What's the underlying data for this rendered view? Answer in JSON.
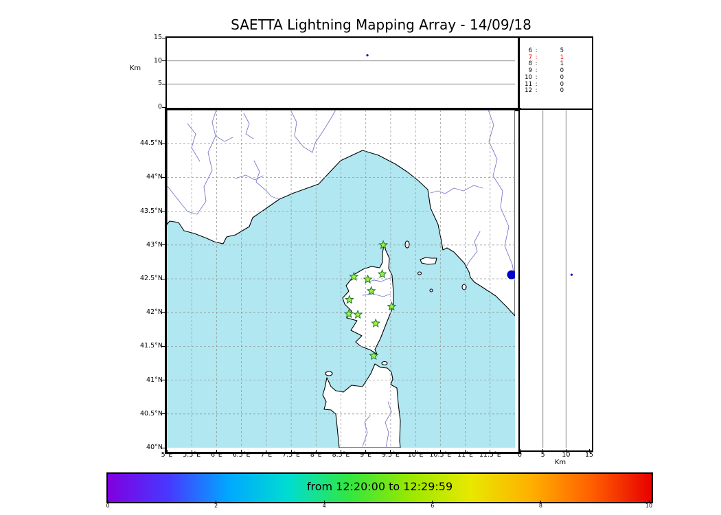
{
  "chart_data": {
    "type": "scatter",
    "title": "SAETTA Lightning Mapping Array - 14/09/18",
    "altitude_time_panel": {
      "ylabel": "Km",
      "ylim_km": [
        0,
        15
      ],
      "yticks_km": [
        0,
        5,
        10,
        15
      ],
      "gridlines_km": [
        5,
        10
      ],
      "sources": [
        {
          "time_frac": 0.576,
          "alt_km": 11.2
        }
      ]
    },
    "stations_histogram": {
      "rows": [
        {
          "label": "6",
          "value": "5",
          "highlight": false
        },
        {
          "label": "7",
          "value": "1",
          "highlight": true
        },
        {
          "label": "8",
          "value": "1",
          "highlight": false
        },
        {
          "label": "9",
          "value": "0",
          "highlight": false
        },
        {
          "label": "10",
          "value": "0",
          "highlight": false
        },
        {
          "label": "11",
          "value": "0",
          "highlight": false
        },
        {
          "label": "12",
          "value": "0",
          "highlight": false
        }
      ]
    },
    "map_panel": {
      "lon_range": [
        5,
        12
      ],
      "lat_range": [
        40,
        45
      ],
      "lat_ticks": [
        {
          "v": 44.5,
          "label": "44.5°N"
        },
        {
          "v": 44,
          "label": "44°N"
        },
        {
          "v": 43.5,
          "label": "43.5°N"
        },
        {
          "v": 43,
          "label": "43°N"
        },
        {
          "v": 42.5,
          "label": "42.5°N"
        },
        {
          "v": 42,
          "label": "42°N"
        },
        {
          "v": 41.5,
          "label": "41.5°N"
        },
        {
          "v": 41,
          "label": "41°N"
        },
        {
          "v": 40.5,
          "label": "40.5°N"
        },
        {
          "v": 40,
          "label": "40°N"
        }
      ],
      "lon_ticks": [
        {
          "v": 5,
          "label": "5°E"
        },
        {
          "v": 5.5,
          "label": "5.5°E"
        },
        {
          "v": 6,
          "label": "6°E"
        },
        {
          "v": 6.5,
          "label": "6.5°E"
        },
        {
          "v": 7,
          "label": "7°E"
        },
        {
          "v": 7.5,
          "label": "7.5°E"
        },
        {
          "v": 8,
          "label": "8°E"
        },
        {
          "v": 8.5,
          "label": "8.5°E"
        },
        {
          "v": 9,
          "label": "9°E"
        },
        {
          "v": 9.5,
          "label": "9.5°E"
        },
        {
          "v": 10,
          "label": "10°E"
        },
        {
          "v": 10.5,
          "label": "10.5°E"
        },
        {
          "v": 11,
          "label": "11°E"
        },
        {
          "v": 11.5,
          "label": "11.5°E"
        }
      ],
      "grid_lons": [
        5.5,
        6,
        6.5,
        7,
        7.5,
        8,
        8.5,
        9,
        9.5,
        10,
        10.5,
        11,
        11.5
      ],
      "grid_lats": [
        40.5,
        41,
        41.5,
        42,
        42.5,
        43,
        43.5,
        44,
        44.5
      ],
      "stations_lonlat": [
        [
          9.35,
          43.0
        ],
        [
          8.76,
          42.53
        ],
        [
          9.04,
          42.49
        ],
        [
          9.33,
          42.57
        ],
        [
          9.11,
          42.32
        ],
        [
          8.67,
          42.19
        ],
        [
          9.52,
          42.09
        ],
        [
          8.66,
          41.98
        ],
        [
          8.84,
          41.97
        ],
        [
          9.2,
          41.84
        ],
        [
          9.16,
          41.36
        ]
      ],
      "sources": [
        {
          "lon": 11.93,
          "lat": 42.56,
          "radius_px": 6.5
        }
      ]
    },
    "altitude_lat_panel": {
      "xlabel": "Km",
      "xlim_km": [
        0,
        15
      ],
      "xticks_km": [
        0,
        5,
        10,
        15
      ],
      "gridlines_km": [
        5,
        10
      ],
      "sources": [
        {
          "alt_km": 11.2,
          "lat": 42.56
        }
      ]
    },
    "colorbar": {
      "label": "from 12:20:00 to 12:29:59",
      "ticks": [
        0,
        2,
        4,
        6,
        8,
        10
      ],
      "range": [
        0,
        10
      ],
      "gradient": [
        "#8000e0",
        "#4838ff",
        "#00a8ff",
        "#00ddd0",
        "#33e640",
        "#99e800",
        "#e8e800",
        "#ffb000",
        "#ff6000",
        "#e80000"
      ]
    },
    "colors": {
      "sea": "#b0e7f1",
      "land": "#ffffff",
      "coastline": "#000000",
      "grid": "#999999",
      "river": "#7878cc",
      "station_fill": "#9cf04a",
      "station_edge": "#217821",
      "source_fill": "#0000cc",
      "highlight": "#ff0000"
    }
  }
}
